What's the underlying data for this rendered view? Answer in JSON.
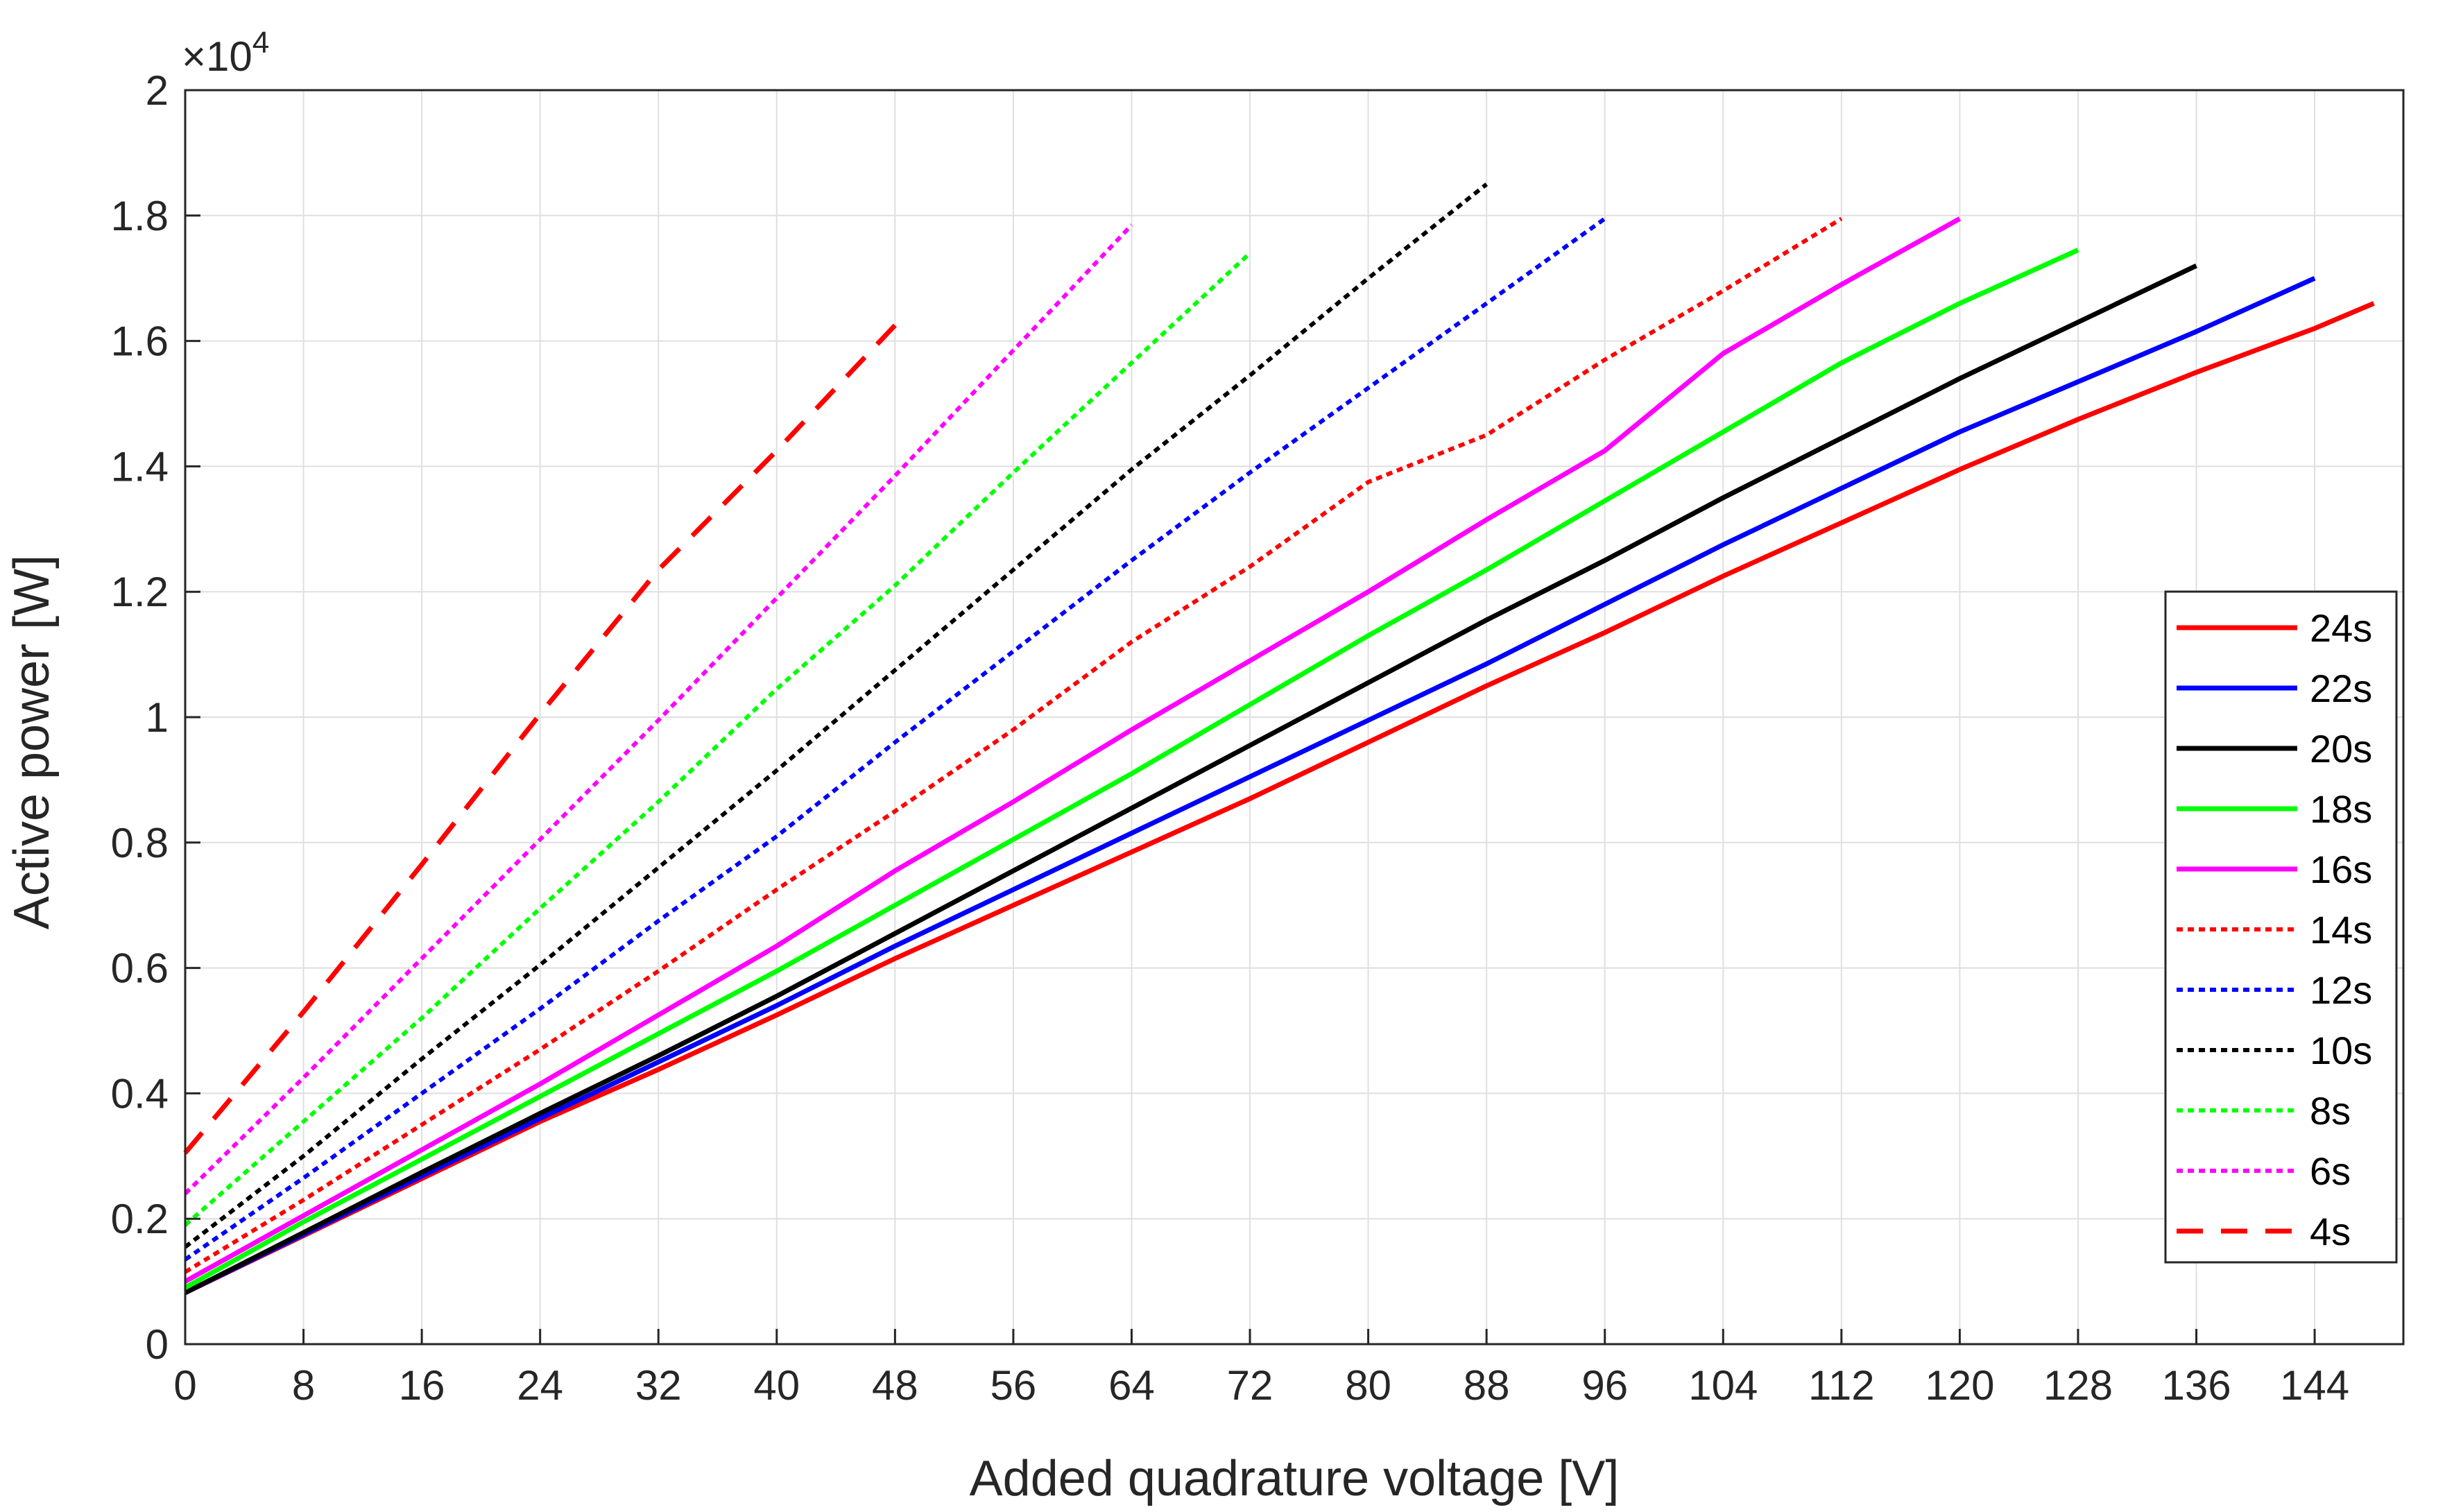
{
  "chart_data": {
    "type": "line",
    "title": "",
    "xlabel": "Added quadrature voltage [V]",
    "ylabel": "Active power [W]",
    "y_exponent_label": "×10",
    "y_exponent_power": "4",
    "xlim": [
      0,
      150
    ],
    "ylim": [
      0,
      20000
    ],
    "grid": true,
    "legend_position": "right",
    "x_ticks": [
      "0",
      "8",
      "16",
      "24",
      "32",
      "40",
      "48",
      "56",
      "64",
      "72",
      "80",
      "88",
      "96",
      "104",
      "112",
      "120",
      "128",
      "136",
      "144"
    ],
    "y_ticks": [
      "0",
      "0.2",
      "0.4",
      "0.6",
      "0.8",
      "1",
      "1.2",
      "1.4",
      "1.6",
      "1.8",
      "2"
    ],
    "series": [
      {
        "name": "24s",
        "color": "#ff0000",
        "style": "solid",
        "x": [
          0,
          8,
          16,
          24,
          32,
          40,
          48,
          56,
          64,
          72,
          80,
          88,
          96,
          104,
          112,
          120,
          128,
          136,
          144,
          148
        ],
        "y": [
          820,
          1730,
          2640,
          3550,
          4380,
          5250,
          6150,
          7000,
          7850,
          8700,
          9600,
          10500,
          11350,
          12250,
          13100,
          13950,
          14750,
          15500,
          16200,
          16600
        ]
      },
      {
        "name": "22s",
        "color": "#0000ff",
        "style": "solid",
        "x": [
          0,
          8,
          16,
          24,
          32,
          40,
          48,
          56,
          64,
          72,
          80,
          88,
          96,
          104,
          112,
          120,
          128,
          136,
          144
        ],
        "y": [
          820,
          1750,
          2680,
          3600,
          4500,
          5400,
          6350,
          7250,
          8150,
          9050,
          9950,
          10850,
          11800,
          12750,
          13650,
          14550,
          15350,
          16150,
          17000
        ]
      },
      {
        "name": "20s",
        "color": "#000000",
        "style": "solid",
        "x": [
          0,
          8,
          16,
          24,
          32,
          40,
          48,
          56,
          64,
          72,
          80,
          88,
          96,
          104,
          112,
          120,
          128,
          136
        ],
        "y": [
          820,
          1780,
          2740,
          3680,
          4600,
          5550,
          6550,
          7550,
          8550,
          9550,
          10550,
          11550,
          12500,
          13500,
          14450,
          15400,
          16300,
          17200
        ]
      },
      {
        "name": "18s",
        "color": "#00ff00",
        "style": "solid",
        "x": [
          0,
          8,
          16,
          24,
          32,
          40,
          48,
          56,
          64,
          72,
          80,
          88,
          96,
          104,
          112,
          120,
          128
        ],
        "y": [
          900,
          1950,
          2950,
          3950,
          4950,
          5950,
          7000,
          8050,
          9100,
          10200,
          11300,
          12350,
          13450,
          14550,
          15650,
          16600,
          17450
        ]
      },
      {
        "name": "16s",
        "color": "#ff00ff",
        "style": "solid",
        "x": [
          0,
          8,
          16,
          24,
          32,
          40,
          48,
          56,
          64,
          72,
          80,
          88,
          96,
          104,
          112,
          120
        ],
        "y": [
          1000,
          2050,
          3100,
          4150,
          5250,
          6350,
          7550,
          8650,
          9800,
          10900,
          12000,
          13150,
          14250,
          15800,
          16900,
          17950
        ]
      },
      {
        "name": "14s",
        "color": "#ff0000",
        "style": "dotted",
        "x": [
          0,
          8,
          16,
          24,
          32,
          40,
          48,
          56,
          64,
          72,
          80,
          88,
          96,
          104,
          112
        ],
        "y": [
          1150,
          2300,
          3500,
          4700,
          5950,
          7250,
          8500,
          9800,
          11200,
          12400,
          13750,
          14500,
          15700,
          16800,
          17950
        ]
      },
      {
        "name": "12s",
        "color": "#0000ff",
        "style": "dotted",
        "x": [
          0,
          8,
          16,
          24,
          32,
          40,
          48,
          56,
          64,
          72,
          80,
          88,
          96
        ],
        "y": [
          1350,
          2650,
          4000,
          5350,
          6750,
          8100,
          9600,
          11050,
          12500,
          13900,
          15250,
          16600,
          17950
        ]
      },
      {
        "name": "10s",
        "color": "#000000",
        "style": "dotted",
        "x": [
          0,
          8,
          16,
          24,
          32,
          40,
          48,
          56,
          64,
          72,
          80,
          88
        ],
        "y": [
          1550,
          3000,
          4550,
          6050,
          7600,
          9150,
          10750,
          12350,
          13950,
          15450,
          17000,
          18500
        ]
      },
      {
        "name": "8s",
        "color": "#00ff00",
        "style": "dotted",
        "x": [
          0,
          8,
          16,
          24,
          32,
          40,
          48,
          56,
          64,
          72
        ],
        "y": [
          1900,
          3550,
          5200,
          6950,
          8650,
          10450,
          12100,
          13900,
          15650,
          17400
        ]
      },
      {
        "name": "6s",
        "color": "#ff00ff",
        "style": "dotted",
        "x": [
          0,
          8,
          16,
          24,
          32,
          40,
          48,
          56,
          64
        ],
        "y": [
          2400,
          4250,
          6150,
          8050,
          9950,
          11900,
          13850,
          15850,
          17850
        ]
      },
      {
        "name": "4s",
        "color": "#ff0000",
        "style": "dashed",
        "x": [
          0,
          8,
          16,
          24,
          32,
          40,
          48
        ],
        "y": [
          3050,
          5300,
          7650,
          10050,
          12350,
          14250,
          16250
        ]
      }
    ]
  }
}
